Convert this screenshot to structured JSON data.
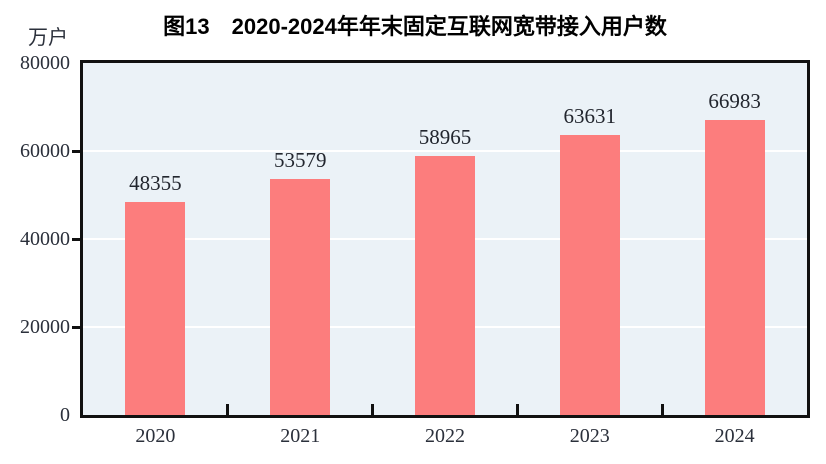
{
  "figure": {
    "title": "图13　2020-2024年年末固定互联网宽带接入用户数",
    "unit_label": "万户"
  },
  "chart_data": {
    "type": "bar",
    "title": "图13　2020-2024年年末固定互联网宽带接入用户数",
    "ylabel": "万户",
    "xlabel": "",
    "categories": [
      "2020",
      "2021",
      "2022",
      "2023",
      "2024"
    ],
    "values": [
      48355,
      53579,
      58965,
      63631,
      66983
    ],
    "ylim": [
      0,
      80000
    ],
    "yticks": [
      0,
      20000,
      40000,
      60000,
      80000
    ],
    "grid": "horizontal-white",
    "legend": "none",
    "bar_color": "#FC7D7D",
    "plot_bg": "#EBF2F7",
    "text_color": "#2B303B",
    "value_label_color": "#22262E",
    "axis_color": "#111111"
  }
}
